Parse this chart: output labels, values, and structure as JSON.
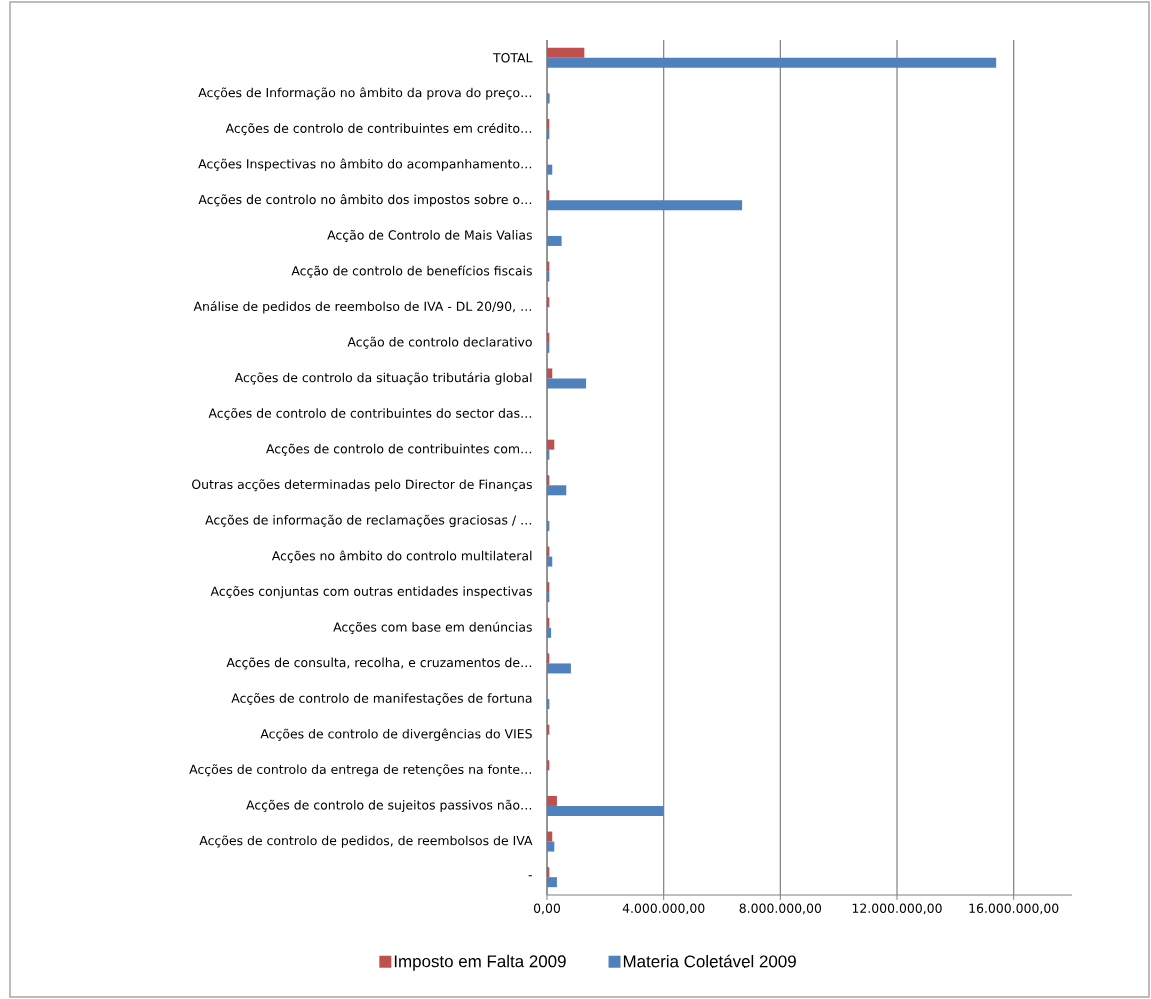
{
  "chart_data": {
    "type": "bar",
    "orientation": "horizontal",
    "categories": [
      "TOTAL",
      "Acções de Informação no âmbito da prova do preço…",
      "Acções de controlo de contribuintes em crédito…",
      "Acções Inspectivas no âmbito do acompanhamento…",
      "Acções de controlo no âmbito dos impostos sobre o…",
      "Acção de Controlo de Mais Valias",
      "Acção de controlo de benefícios fiscais",
      "Análise de pedidos de reembolso de IVA - DL 20/90, …",
      "Acção de controlo declarativo",
      "Acções de controlo da situação tributária global",
      "Acções de controlo de contribuintes do sector das…",
      "Acções de controlo de contribuintes com…",
      "Outras acções determinadas pelo Director de Finanças",
      "Acções de informação de reclamações graciosas / …",
      "Acções no âmbito do controlo multilateral",
      "Acções conjuntas com outras entidades inspectivas",
      "Acções com base em denúncias",
      "Acções de consulta, recolha, e cruzamentos de…",
      "Acções de controlo de manifestações de fortuna",
      "Acções de controlo de divergências do VIES",
      "Acções de controlo da entrega de retenções na fonte…",
      "Acções de controlo de sujeitos passivos não…",
      "Acções de controlo de pedidos, de reembolsos de IVA",
      "-"
    ],
    "series": [
      {
        "name": "Imposto em Falta 2009",
        "color": "#c0504d",
        "values": [
          1280000,
          0,
          80000,
          0,
          80000,
          0,
          80000,
          80000,
          80000,
          180000,
          0,
          250000,
          80000,
          0,
          80000,
          80000,
          80000,
          80000,
          0,
          80000,
          80000,
          340000,
          180000,
          80000
        ]
      },
      {
        "name": "Materia Coletável 2009",
        "color": "#4f81bd",
        "values": [
          15400000,
          90000,
          80000,
          180000,
          6690000,
          500000,
          80000,
          0,
          80000,
          1340000,
          0,
          80000,
          660000,
          80000,
          180000,
          80000,
          140000,
          820000,
          80000,
          0,
          0,
          4000000,
          250000,
          340000
        ]
      }
    ],
    "xlim": [
      0,
      18000000
    ],
    "xticks": [
      {
        "value": 0,
        "label": "0,00"
      },
      {
        "value": 4000000,
        "label": "4.000.000,00"
      },
      {
        "value": 8000000,
        "label": "8.000.000,00"
      },
      {
        "value": 12000000,
        "label": "12.000.000,00"
      },
      {
        "value": 16000000,
        "label": "16.000.000,00"
      }
    ],
    "grid": "x",
    "legend": "bottom"
  }
}
